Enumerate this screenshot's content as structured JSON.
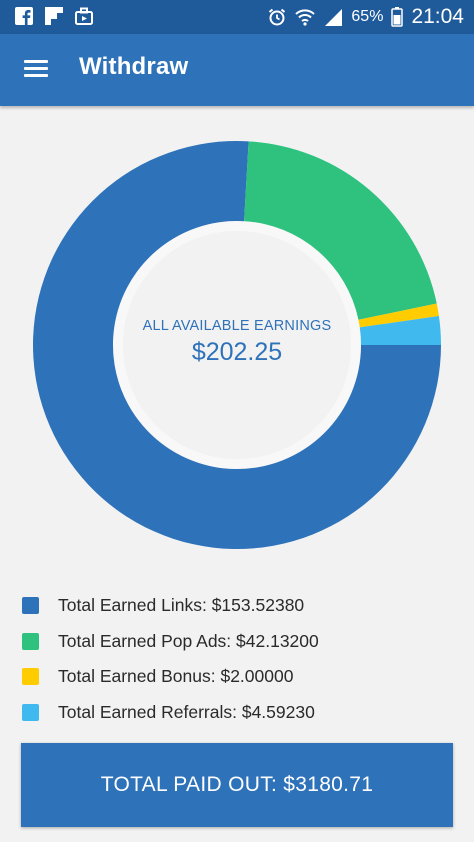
{
  "status_bar": {
    "battery": "65%",
    "time": "21:04",
    "left_icons": [
      "facebook-icon",
      "flipboard-icon",
      "briefcase-icon"
    ],
    "right_icons": [
      "alarm-icon",
      "wifi-icon",
      "signal-icon",
      "battery-icon"
    ]
  },
  "app_bar": {
    "title": "Withdraw",
    "menu_icon": "hamburger-menu-icon"
  },
  "center": {
    "label": "ALL AVAILABLE EARNINGS",
    "value": "$202.25"
  },
  "chart_data": {
    "type": "pie",
    "categories": [
      "Total Earned Links",
      "Total Earned Pop Ads",
      "Total Earned Bonus",
      "Total Earned Referrals"
    ],
    "values": [
      153.5238,
      42.132,
      2.0,
      4.5923
    ],
    "colors": [
      "#2e72ba",
      "#2ec27e",
      "#ffcc00",
      "#3fb9ee"
    ]
  },
  "legend": [
    {
      "label": "Total Earned Links: $153.52380",
      "color": "#2e72ba"
    },
    {
      "label": "Total Earned Pop Ads: $42.13200",
      "color": "#2ec27e"
    },
    {
      "label": "Total Earned Bonus: $2.00000",
      "color": "#ffcc00"
    },
    {
      "label": "Total Earned Referrals: $4.59230",
      "color": "#3fb9ee"
    }
  ],
  "paid_out_button": {
    "label": "TOTAL PAID OUT: $3180.71"
  }
}
